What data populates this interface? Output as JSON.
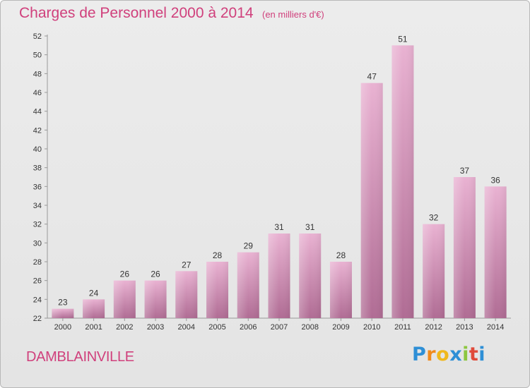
{
  "header": {
    "title": "Charges de Personnel 2000 à 2014",
    "unit": "(en milliers d'€)"
  },
  "footer": {
    "place": "DAMBLAINVILLE",
    "logo": {
      "letters": [
        "P",
        "r",
        "o",
        "x",
        "i",
        "t",
        "i"
      ],
      "colors": [
        "#2e8fd6",
        "#f08a1c",
        "#f0b81c",
        "#2e8fd6",
        "#8cc63f",
        "#e04a3a",
        "#2e8fd6"
      ]
    }
  },
  "colors": {
    "bar_light": "#e9b2d2",
    "bar_dark": "#b06c94"
  },
  "chart_data": {
    "type": "bar",
    "categories": [
      "2000",
      "2001",
      "2002",
      "2003",
      "2004",
      "2005",
      "2006",
      "2007",
      "2008",
      "2009",
      "2010",
      "2011",
      "2012",
      "2013",
      "2014"
    ],
    "values": [
      23,
      24,
      26,
      26,
      27,
      28,
      29,
      31,
      31,
      28,
      47,
      51,
      32,
      37,
      36
    ],
    "ylim": [
      22,
      52
    ],
    "yticks": [
      22,
      24,
      26,
      28,
      30,
      32,
      34,
      36,
      38,
      40,
      42,
      44,
      46,
      48,
      50,
      52
    ],
    "title": "Charges de Personnel 2000 à 2014",
    "xlabel": "",
    "ylabel": "",
    "grid": false,
    "legend": "none"
  }
}
